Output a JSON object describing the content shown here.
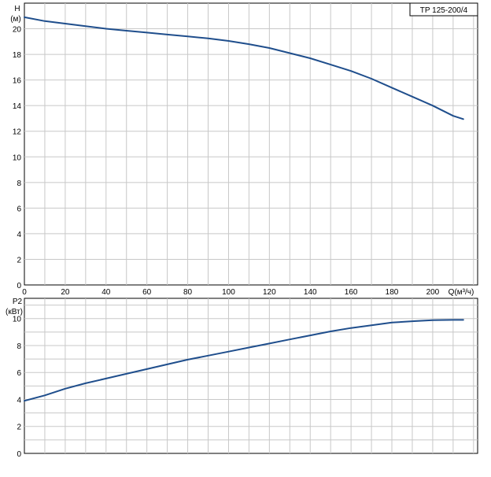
{
  "chart_data": [
    {
      "type": "line",
      "model_label": "TP 125-200/4",
      "ylabel_line1": "H",
      "ylabel_line2": "(м)",
      "xlabel": "Q(м³/ч)",
      "xlim": [
        0,
        222
      ],
      "ylim": [
        0,
        22
      ],
      "xticks": [
        0,
        20,
        40,
        60,
        80,
        100,
        120,
        140,
        160,
        180,
        200
      ],
      "yticks": [
        0,
        2,
        4,
        6,
        8,
        10,
        12,
        14,
        16,
        18,
        20
      ],
      "grid": true,
      "color": "#1f4e8c",
      "series": [
        {
          "x": [
            0,
            10,
            20,
            30,
            40,
            50,
            60,
            70,
            80,
            90,
            100,
            110,
            120,
            130,
            140,
            150,
            160,
            170,
            180,
            190,
            200,
            210,
            215
          ],
          "values": [
            20.9,
            20.6,
            20.4,
            20.2,
            20.0,
            19.85,
            19.7,
            19.55,
            19.4,
            19.25,
            19.05,
            18.8,
            18.5,
            18.1,
            17.7,
            17.2,
            16.7,
            16.1,
            15.4,
            14.7,
            14.0,
            13.2,
            12.95
          ]
        }
      ]
    },
    {
      "type": "line",
      "ylabel_line1": "P2",
      "ylabel_line2": "(кВт)",
      "xlim": [
        0,
        222
      ],
      "ylim": [
        0,
        11.5
      ],
      "yticks": [
        0,
        2,
        4,
        6,
        8,
        10
      ],
      "grid": true,
      "color": "#1f4e8c",
      "series": [
        {
          "x": [
            0,
            10,
            20,
            30,
            40,
            50,
            60,
            70,
            80,
            90,
            100,
            110,
            120,
            130,
            140,
            150,
            160,
            170,
            180,
            190,
            200,
            210,
            215
          ],
          "values": [
            3.9,
            4.3,
            4.8,
            5.2,
            5.55,
            5.9,
            6.25,
            6.6,
            6.95,
            7.25,
            7.55,
            7.85,
            8.15,
            8.45,
            8.75,
            9.05,
            9.3,
            9.5,
            9.7,
            9.8,
            9.88,
            9.9,
            9.9
          ]
        }
      ]
    }
  ]
}
